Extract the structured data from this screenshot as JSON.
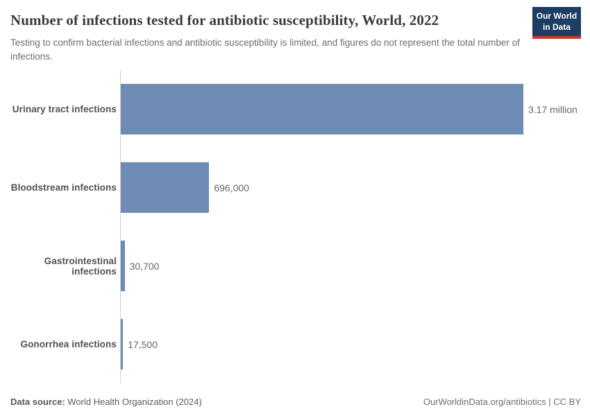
{
  "header": {
    "title": "Number of infections tested for antibiotic susceptibility, World, 2022",
    "subtitle": "Testing to confirm bacterial infections and antibiotic susceptibility is limited, and figures do not represent the total number of infections.",
    "logo": {
      "line1": "Our World",
      "line2": "in Data",
      "bg_color": "#1d3d63",
      "accent_color": "#d0342c"
    }
  },
  "chart_data": {
    "type": "bar",
    "orientation": "horizontal",
    "title": "Number of infections tested for antibiotic susceptibility, World, 2022",
    "categories": [
      "Urinary tract infections",
      "Bloodstream infections",
      "Gastrointestinal infections",
      "Gonorrhea infections"
    ],
    "values": [
      3170000,
      696000,
      30700,
      17500
    ],
    "value_labels": [
      "3.17 million",
      "696,000",
      "30,700",
      "17,500"
    ],
    "max_value": 3170000,
    "bar_color": "#6e8cb3",
    "axis_color": "#cfcfcf",
    "grid": "off",
    "legend": "none"
  },
  "footer": {
    "datasource_label": "Data source:",
    "datasource_value": "World Health Organization (2024)",
    "right_text": "OurWorldinData.org/antibiotics | CC BY"
  }
}
